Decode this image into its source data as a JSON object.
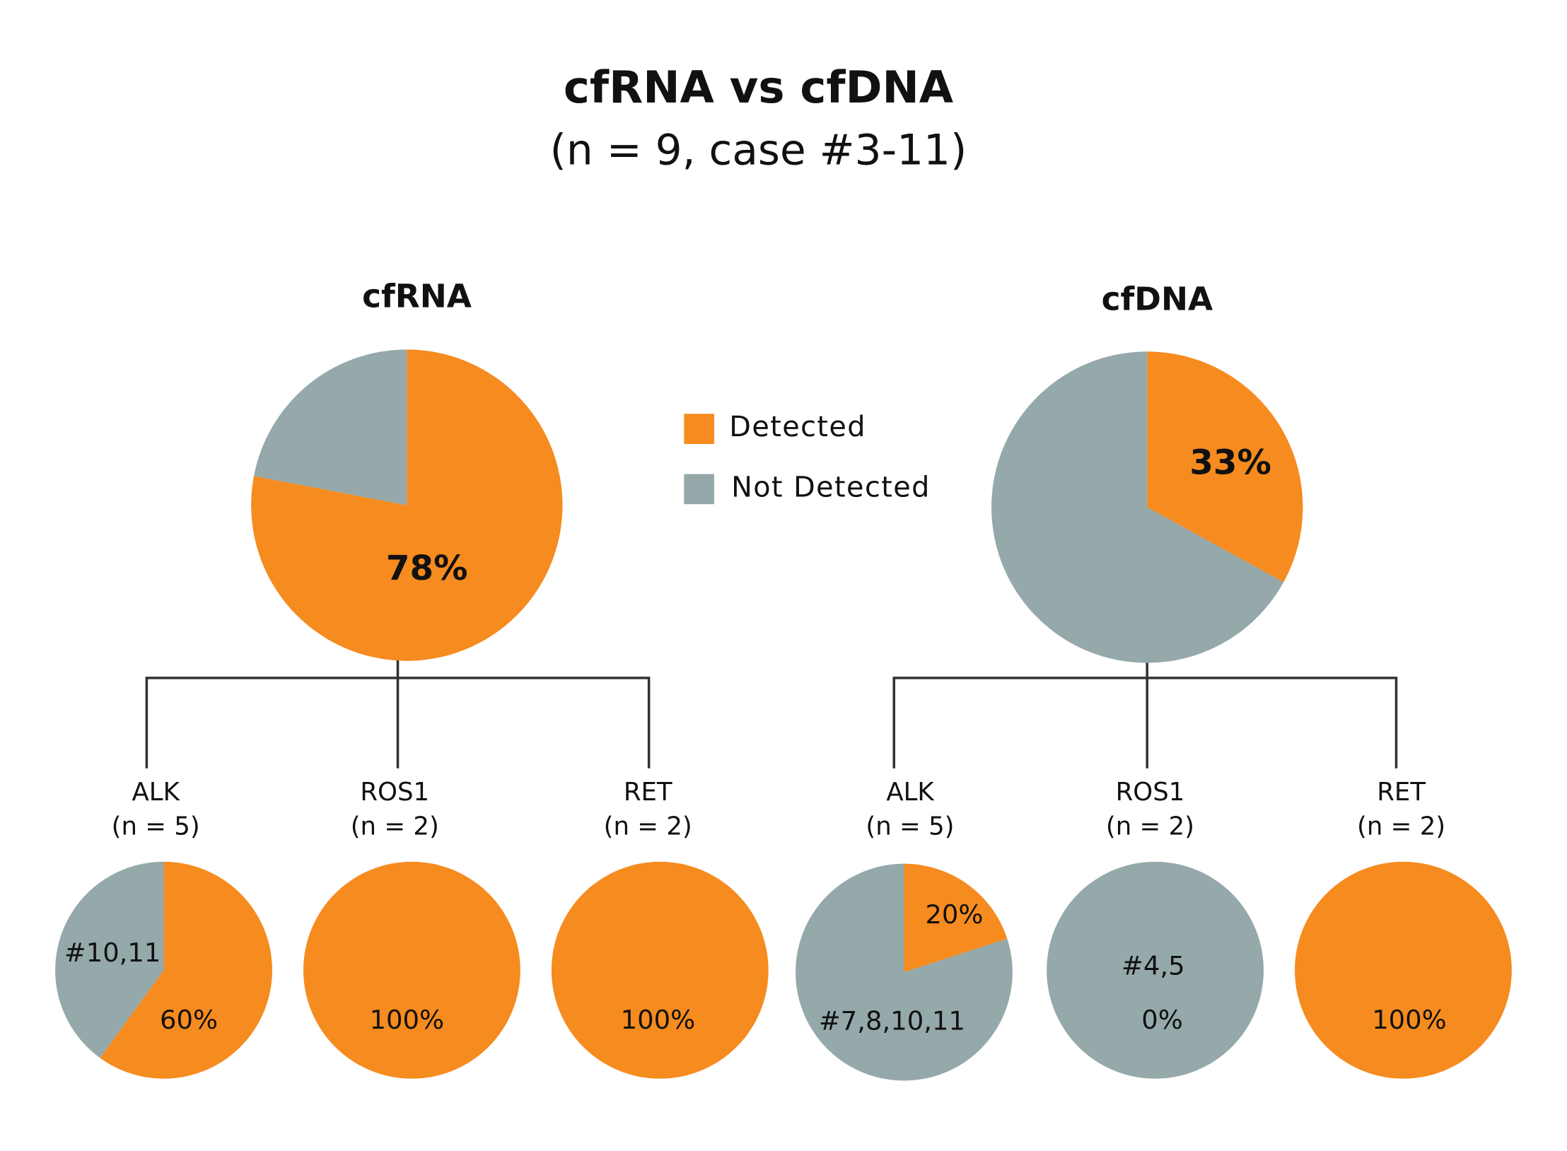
{
  "title": "cfRNA vs cfDNA",
  "subtitle": "(n = 9, case #3-11)",
  "legend": {
    "labels": [
      "Detected",
      "Not Detected"
    ],
    "colors": [
      "#f68b1f",
      "#95a8aa"
    ]
  },
  "chart_data": [
    {
      "type": "pie",
      "title": "cfRNA",
      "values": [
        78,
        22
      ],
      "value_labels": [
        "78%",
        null
      ]
    },
    {
      "type": "pie",
      "title": "cfDNA",
      "values": [
        33,
        67
      ],
      "value_labels": [
        "33%",
        null
      ]
    },
    {
      "type": "pie",
      "title": "ALK",
      "subtitle": "(n = 5)",
      "values": [
        60,
        40
      ],
      "value_labels": [
        "60%",
        null
      ],
      "slice_notes": [
        null,
        "#10,11"
      ]
    },
    {
      "type": "pie",
      "title": "ROS1",
      "subtitle": "(n = 2)",
      "values": [
        100,
        0
      ],
      "value_labels": [
        "100%",
        null
      ]
    },
    {
      "type": "pie",
      "title": "RET",
      "subtitle": "(n = 2)",
      "values": [
        100,
        0
      ],
      "value_labels": [
        "100%",
        null
      ]
    },
    {
      "type": "pie",
      "title": "ALK",
      "subtitle": "(n = 5)",
      "values": [
        20,
        80
      ],
      "value_labels": [
        "20%",
        null
      ],
      "slice_notes": [
        null,
        "#7,8,10,11"
      ]
    },
    {
      "type": "pie",
      "title": "ROS1",
      "subtitle": "(n = 2)",
      "values": [
        0,
        100
      ],
      "value_labels": [
        "0%",
        null
      ],
      "slice_notes": [
        null,
        "#4,5"
      ]
    },
    {
      "type": "pie",
      "title": "RET",
      "subtitle": "(n = 2)",
      "values": [
        100,
        0
      ],
      "value_labels": [
        "100%",
        null
      ]
    }
  ]
}
